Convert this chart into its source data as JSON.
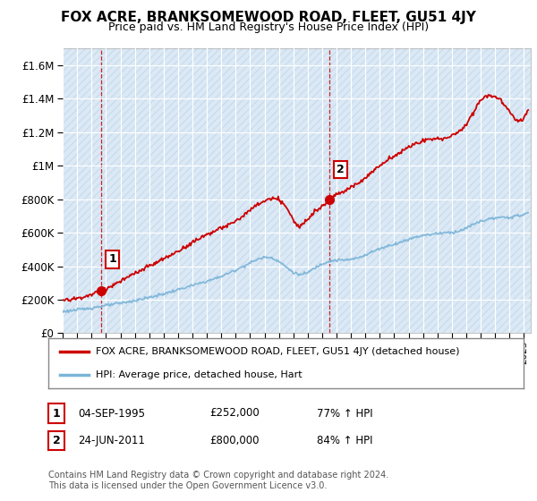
{
  "title": "FOX ACRE, BRANKSOMEWOOD ROAD, FLEET, GU51 4JY",
  "subtitle": "Price paid vs. HM Land Registry's House Price Index (HPI)",
  "ylim": [
    0,
    1700000
  ],
  "yticks": [
    0,
    200000,
    400000,
    600000,
    800000,
    1000000,
    1200000,
    1400000,
    1600000
  ],
  "xlim_start": 1993.0,
  "xlim_end": 2025.5,
  "hpi_color": "#7ab4d8",
  "price_color": "#cc0000",
  "sale1_year": 1995.67,
  "sale1_price": 252000,
  "sale2_year": 2011.48,
  "sale2_price": 800000,
  "annotation1": "1",
  "annotation2": "2",
  "legend_label1": "FOX ACRE, BRANKSOMEWOOD ROAD, FLEET, GU51 4JY (detached house)",
  "legend_label2": "HPI: Average price, detached house, Hart",
  "table_row1": [
    "1",
    "04-SEP-1995",
    "£252,000",
    "77% ↑ HPI"
  ],
  "table_row2": [
    "2",
    "24-JUN-2011",
    "£800,000",
    "84% ↑ HPI"
  ],
  "footer": "Contains HM Land Registry data © Crown copyright and database right 2024.\nThis data is licensed under the Open Government Licence v3.0.",
  "background_color": "#ffffff",
  "chart_bg_color": "#dce9f5",
  "grid_color": "#ffffff",
  "hatch_color": "#c8ddf0"
}
